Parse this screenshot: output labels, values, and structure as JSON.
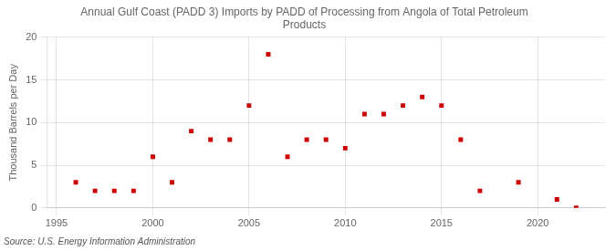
{
  "chart_data": {
    "type": "scatter",
    "title": "Annual Gulf Coast (PADD 3) Imports by PADD of Processing from Angola of Total Petroleum\nProducts",
    "ylabel": "Thousand Barrels per Day",
    "annotation": "Source: U.S. Energy Information Administration",
    "x": [
      1996,
      1997,
      1998,
      1999,
      2000,
      2001,
      2002,
      2003,
      2004,
      2005,
      2006,
      2007,
      2008,
      2009,
      2010,
      2011,
      2012,
      2013,
      2014,
      2015,
      2016,
      2017,
      2019,
      2021,
      2022
    ],
    "values": [
      3,
      2,
      2,
      2,
      6,
      3,
      9,
      8,
      8,
      12,
      18,
      6,
      8,
      8,
      7,
      11,
      11,
      12,
      13,
      12,
      8,
      2,
      3,
      1,
      0
    ],
    "color": "#cc0000",
    "marker": "square",
    "xlim": [
      1994.5,
      2023.5
    ],
    "ylim": [
      0,
      20
    ],
    "xticks": [
      1995,
      2000,
      2005,
      2010,
      2015,
      2020
    ],
    "yticks": [
      0,
      5,
      10,
      15,
      20
    ],
    "grid": true
  }
}
